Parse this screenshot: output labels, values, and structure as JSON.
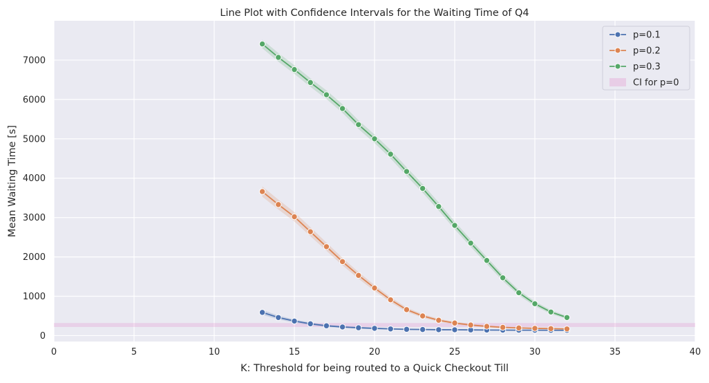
{
  "chart_data": {
    "type": "line",
    "title": "Line Plot with Confidence Intervals for the Waiting Time of Q4",
    "xlabel": "K: Threshold for being routed to a Quick Checkout Till",
    "ylabel": "Mean Waiting Time [s]",
    "xlim": [
      0,
      40
    ],
    "ylim": [
      -150,
      8000
    ],
    "x_ticks": [
      0,
      5,
      10,
      15,
      20,
      25,
      30,
      35,
      40
    ],
    "y_ticks": [
      0,
      1000,
      2000,
      3000,
      4000,
      5000,
      6000,
      7000
    ],
    "grid": true,
    "legend_position": "top-right",
    "x": [
      13,
      14,
      15,
      16,
      17,
      18,
      19,
      20,
      21,
      22,
      23,
      24,
      25,
      26,
      27,
      28,
      29,
      30,
      31,
      32
    ],
    "series": [
      {
        "name": "p=0.1",
        "color": "#4c72b0",
        "values": [
          590,
          460,
          370,
          300,
          250,
          220,
          200,
          185,
          170,
          160,
          155,
          150,
          148,
          145,
          142,
          140,
          138,
          137,
          136,
          135
        ],
        "ci_halfwidth": [
          60,
          50,
          40,
          32,
          28,
          25,
          22,
          20,
          18,
          17,
          16,
          15,
          15,
          14,
          14,
          13,
          13,
          13,
          12,
          12
        ]
      },
      {
        "name": "p=0.2",
        "color": "#dd8452",
        "values": [
          3660,
          3330,
          3020,
          2640,
          2260,
          1880,
          1530,
          1210,
          910,
          660,
          500,
          390,
          320,
          270,
          235,
          210,
          195,
          185,
          178,
          170
        ],
        "ci_halfwidth": [
          130,
          125,
          120,
          115,
          105,
          95,
          85,
          75,
          65,
          55,
          45,
          38,
          32,
          28,
          25,
          22,
          20,
          19,
          18,
          17
        ]
      },
      {
        "name": "p=0.3",
        "color": "#55a868",
        "values": [
          7410,
          7070,
          6760,
          6430,
          6120,
          5770,
          5360,
          5000,
          4610,
          4170,
          3740,
          3280,
          2800,
          2350,
          1910,
          1470,
          1090,
          810,
          600,
          460
        ],
        "ci_halfwidth": [
          110,
          110,
          110,
          110,
          110,
          110,
          110,
          110,
          110,
          110,
          110,
          105,
          100,
          95,
          90,
          80,
          70,
          60,
          50,
          40
        ]
      }
    ],
    "ci_band": {
      "name": "CI for p=0",
      "color": "#e377c2",
      "range": [
        220,
        320
      ]
    }
  }
}
